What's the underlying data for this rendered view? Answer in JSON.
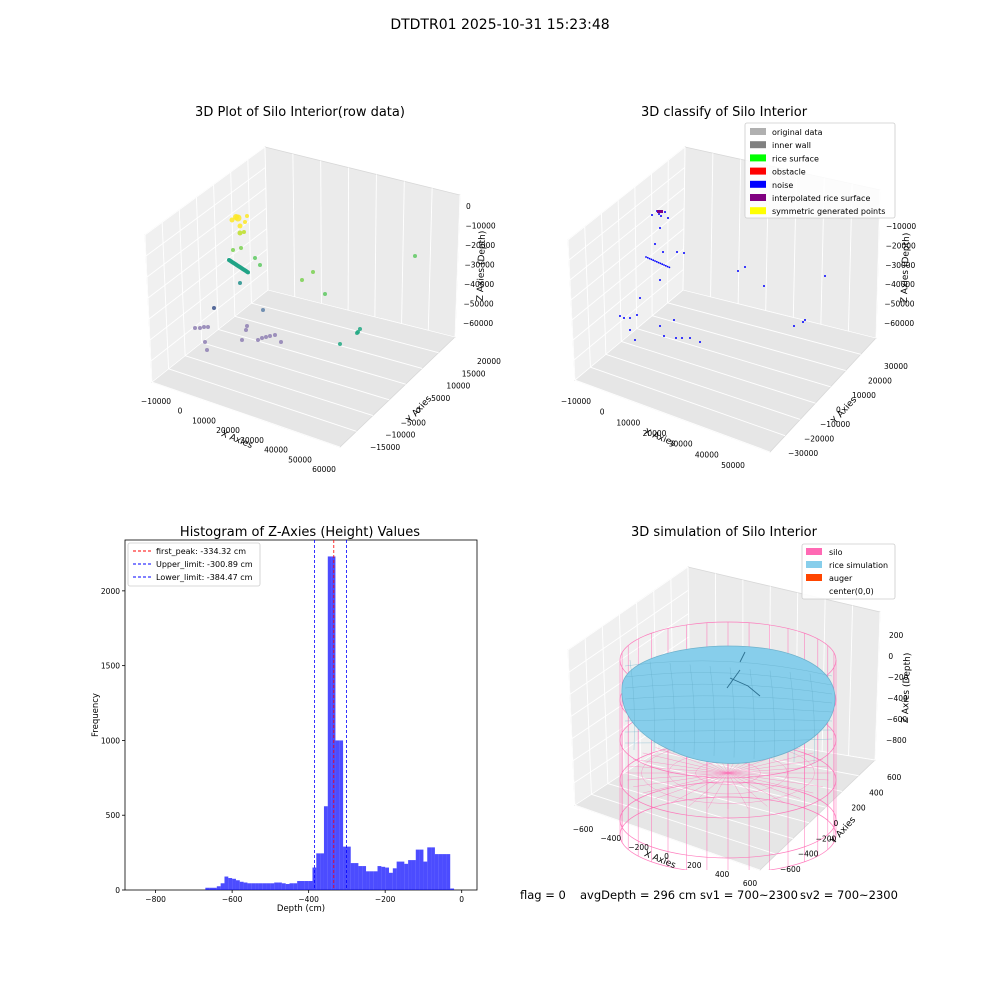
{
  "figure": {
    "title": "DTDTR01 2025-10-31 15:23:48",
    "footer": {
      "flag": "flag = 0",
      "avg_depth": "avgDepth = 296 cm",
      "sv1": "sv1 = 700~2300",
      "sv2": "sv2 = 700~2300"
    }
  },
  "chart_data": [
    {
      "type": "scatter",
      "title": "3D Plot of Silo Interior(row data)",
      "xlabel": "X Axies",
      "ylabel": "Y Axies",
      "zlabel": "Z Axies (Depth)",
      "xticks": [
        "−10000",
        "0",
        "10000",
        "20000",
        "30000",
        "40000",
        "50000",
        "60000"
      ],
      "yticks": [
        "−15000",
        "−10000",
        "−5000",
        "0",
        "5000",
        "10000",
        "15000",
        "20000"
      ],
      "zticks": [
        "0",
        "−10000",
        "−20000",
        "−30000",
        "−40000",
        "−50000",
        "−60000"
      ],
      "color_scale": [
        "#fde725",
        "#5ec962",
        "#21918c",
        "#3b528b",
        "#440154"
      ],
      "grid": true,
      "note_points_estimated": true
    },
    {
      "type": "scatter",
      "title": "3D classify of Silo Interior",
      "xlabel": "X Axies",
      "ylabel": "Y Axies",
      "zlabel": "Z Axies (Depth)",
      "xticks": [
        "−10000",
        "0",
        "10000",
        "20000",
        "30000",
        "40000",
        "50000"
      ],
      "yticks": [
        "−30000",
        "−20000",
        "−10000",
        "0",
        "10000",
        "20000",
        "30000"
      ],
      "zticks": [
        "−10000",
        "−20000",
        "−30000",
        "−40000",
        "−50000",
        "−60000"
      ],
      "legend_position": "top-right",
      "legend": [
        {
          "label": "original data",
          "color": "#b0b0b0"
        },
        {
          "label": "inner wall",
          "color": "#808080"
        },
        {
          "label": "rice surface",
          "color": "#00ff00"
        },
        {
          "label": "obstacle",
          "color": "#ff0000"
        },
        {
          "label": "noise",
          "color": "#0000ff"
        },
        {
          "label": "interpolated rice surface",
          "color": "#800080"
        },
        {
          "label": "symmetric generated points",
          "color": "#ffff00"
        }
      ],
      "grid": true
    },
    {
      "type": "bar",
      "title": "Histogram of Z-Axies (Height) Values",
      "xlabel": "Depth (cm)",
      "ylabel": "Frequency",
      "xlim": [
        -880,
        40
      ],
      "ylim": [
        0,
        2340
      ],
      "xticks": [
        -800,
        -600,
        -400,
        -200,
        0
      ],
      "xtick_labels": [
        "−800",
        "−600",
        "−400",
        "−200",
        "0"
      ],
      "yticks": [
        0,
        500,
        1000,
        1500,
        2000
      ],
      "bar_color": "#0000ff",
      "bin_width": 10,
      "bins": [
        {
          "x": -665,
          "v": 15
        },
        {
          "x": -655,
          "v": 15
        },
        {
          "x": -645,
          "v": 15
        },
        {
          "x": -635,
          "v": 25
        },
        {
          "x": -625,
          "v": 45
        },
        {
          "x": -615,
          "v": 90
        },
        {
          "x": -605,
          "v": 80
        },
        {
          "x": -595,
          "v": 75
        },
        {
          "x": -585,
          "v": 65
        },
        {
          "x": -575,
          "v": 55
        },
        {
          "x": -565,
          "v": 50
        },
        {
          "x": -555,
          "v": 45
        },
        {
          "x": -545,
          "v": 45
        },
        {
          "x": -535,
          "v": 45
        },
        {
          "x": -525,
          "v": 45
        },
        {
          "x": -515,
          "v": 45
        },
        {
          "x": -505,
          "v": 45
        },
        {
          "x": -495,
          "v": 45
        },
        {
          "x": -485,
          "v": 50
        },
        {
          "x": -475,
          "v": 50
        },
        {
          "x": -465,
          "v": 45
        },
        {
          "x": -455,
          "v": 40
        },
        {
          "x": -445,
          "v": 45
        },
        {
          "x": -435,
          "v": 45
        },
        {
          "x": -425,
          "v": 60
        },
        {
          "x": -415,
          "v": 60
        },
        {
          "x": -405,
          "v": 60
        },
        {
          "x": -395,
          "v": 60
        },
        {
          "x": -385,
          "v": 150
        },
        {
          "x": -375,
          "v": 245
        },
        {
          "x": -365,
          "v": 245
        },
        {
          "x": -355,
          "v": 560
        },
        {
          "x": -345,
          "v": 2230
        },
        {
          "x": -335,
          "v": 2230
        },
        {
          "x": -325,
          "v": 1000
        },
        {
          "x": -315,
          "v": 1000
        },
        {
          "x": -305,
          "v": 290
        },
        {
          "x": -295,
          "v": 290
        },
        {
          "x": -285,
          "v": 180
        },
        {
          "x": -275,
          "v": 180
        },
        {
          "x": -265,
          "v": 160
        },
        {
          "x": -255,
          "v": 160
        },
        {
          "x": -245,
          "v": 125
        },
        {
          "x": -235,
          "v": 125
        },
        {
          "x": -225,
          "v": 125
        },
        {
          "x": -215,
          "v": 160
        },
        {
          "x": -205,
          "v": 155
        },
        {
          "x": -195,
          "v": 150
        },
        {
          "x": -185,
          "v": 115
        },
        {
          "x": -175,
          "v": 145
        },
        {
          "x": -165,
          "v": 190
        },
        {
          "x": -155,
          "v": 190
        },
        {
          "x": -145,
          "v": 175
        },
        {
          "x": -135,
          "v": 200
        },
        {
          "x": -125,
          "v": 200
        },
        {
          "x": -115,
          "v": 270
        },
        {
          "x": -105,
          "v": 270
        },
        {
          "x": -95,
          "v": 190
        },
        {
          "x": -85,
          "v": 285
        },
        {
          "x": -75,
          "v": 285
        },
        {
          "x": -65,
          "v": 240
        },
        {
          "x": -55,
          "v": 240
        },
        {
          "x": -45,
          "v": 240
        },
        {
          "x": -35,
          "v": 240
        },
        {
          "x": -25,
          "v": 10
        }
      ],
      "vlines": [
        {
          "x": -334.32,
          "color": "#ff0000"
        },
        {
          "x": -300.89,
          "color": "#0000ff"
        },
        {
          "x": -384.47,
          "color": "#0000ff"
        }
      ],
      "legend_position": "top-left",
      "legend": [
        {
          "label": "first_peak: -334.32 cm",
          "color": "#ff0000"
        },
        {
          "label": "Upper_limit: -300.89 cm",
          "color": "#0000ff"
        },
        {
          "label": "Lower_limit: -384.47 cm",
          "color": "#0000ff"
        }
      ],
      "grid": false
    },
    {
      "type": "scatter",
      "title": "3D simulation of Silo Interior",
      "xlabel": "X Axies",
      "ylabel": "Y Axies",
      "zlabel": "Z Axies (Depth)",
      "xticks": [
        "−600",
        "−400",
        "−200",
        "0",
        "200",
        "400",
        "600"
      ],
      "yticks": [
        "−600",
        "−400",
        "−200",
        "0",
        "200",
        "400",
        "600"
      ],
      "zticks": [
        "200",
        "0",
        "−200",
        "−400",
        "−600",
        "−800"
      ],
      "legend_position": "top-right",
      "legend": [
        {
          "label": "silo",
          "color": "#ff69b4"
        },
        {
          "label": "rice simulation",
          "color": "#87ceeb"
        },
        {
          "label": "auger",
          "color": "#ff4500"
        },
        {
          "label": "center(0,0)",
          "color": "#ffffff"
        }
      ],
      "grid": true
    }
  ]
}
